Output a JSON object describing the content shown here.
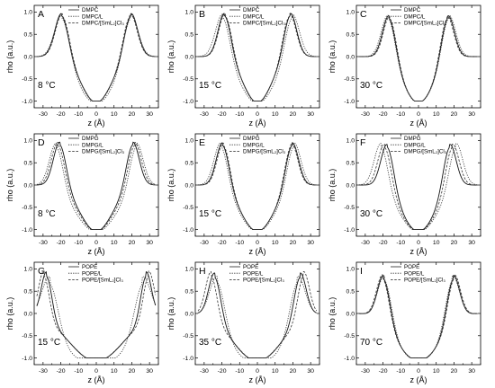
{
  "chart_data": [
    {
      "type": "line",
      "panel": "A",
      "temperature": "8 °C",
      "xlabel": "z (Å)",
      "ylabel": "rho (a.u.)",
      "xlim": [
        -35,
        35
      ],
      "ylim": [
        -1.15,
        1.15
      ],
      "xticks": [
        -30,
        -20,
        -10,
        0,
        10,
        20,
        30
      ],
      "yticks": [
        -1.0,
        -0.5,
        0.0,
        0.5,
        1.0
      ],
      "legend": {
        "position": "top-right"
      },
      "series": [
        {
          "name": "DMPC",
          "style": "solid",
          "peak_z": 19.5,
          "peak_width": 3.8,
          "trough_width": 7.5,
          "inner": 0.1
        },
        {
          "name": "DMPC/L",
          "style": "dotted",
          "peak_z": 19.2,
          "peak_width": 4.2,
          "trough_width": 8.5,
          "inner": 0.15
        },
        {
          "name": "DMPC/[SmL₂]Cl₃",
          "style": "dashed",
          "peak_z": 19.0,
          "peak_width": 3.9,
          "trough_width": 7.5,
          "inner": 0.12
        }
      ]
    },
    {
      "type": "line",
      "panel": "B",
      "temperature": "15 °C",
      "xlabel": "z (Å)",
      "ylabel": "rho (a.u.)",
      "xlim": [
        -35,
        35
      ],
      "ylim": [
        -1.15,
        1.15
      ],
      "xticks": [
        -30,
        -20,
        -10,
        0,
        10,
        20,
        30
      ],
      "yticks": [
        -1.0,
        -0.5,
        0.0,
        0.5,
        1.0
      ],
      "legend": {
        "position": "top-right"
      },
      "series": [
        {
          "name": "DMPC",
          "style": "solid",
          "peak_z": 18.5,
          "peak_width": 3.6,
          "trough_width": 7.0,
          "inner": 0.1
        },
        {
          "name": "DMPC/L",
          "style": "dotted",
          "peak_z": 19.5,
          "peak_width": 4.0,
          "trough_width": 8.0,
          "inner": 0.15
        },
        {
          "name": "DMPC/[SmL₂]Cl₃",
          "style": "dashed",
          "peak_z": 18.0,
          "peak_width": 3.7,
          "trough_width": 7.0,
          "inner": 0.12
        }
      ]
    },
    {
      "type": "line",
      "panel": "C",
      "temperature": "30 °C",
      "xlabel": "z (Å)",
      "ylabel": "rho (a.u.)",
      "xlim": [
        -35,
        35
      ],
      "ylim": [
        -1.15,
        1.15
      ],
      "xticks": [
        -30,
        -20,
        -10,
        0,
        10,
        20,
        30
      ],
      "yticks": [
        -1.0,
        -0.5,
        0.0,
        0.5,
        1.0
      ],
      "legend": {
        "position": "top-right"
      },
      "series": [
        {
          "name": "DMPC",
          "style": "solid",
          "peak_z": 16.5,
          "peak_width": 3.6,
          "trough_width": 7.5,
          "inner": 0.1
        },
        {
          "name": "DMPC/L",
          "style": "dotted",
          "peak_z": 17.0,
          "peak_width": 3.8,
          "trough_width": 7.5,
          "inner": 0.12
        },
        {
          "name": "DMPC/[SmL₂]Cl₃",
          "style": "dashed",
          "peak_z": 16.0,
          "peak_width": 3.6,
          "trough_width": 7.5,
          "inner": 0.1
        }
      ]
    },
    {
      "type": "line",
      "panel": "D",
      "temperature": "8 °C",
      "xlabel": "z (Å)",
      "ylabel": "rho (a.u.)",
      "xlim": [
        -35,
        35
      ],
      "ylim": [
        -1.15,
        1.15
      ],
      "xticks": [
        -30,
        -20,
        -10,
        0,
        10,
        20,
        30
      ],
      "yticks": [
        -1.0,
        -0.5,
        0.0,
        0.5,
        1.0
      ],
      "legend": {
        "position": "top-right"
      },
      "series": [
        {
          "name": "DMPG",
          "style": "solid",
          "peak_z": 20.5,
          "peak_width": 3.6,
          "trough_width": 8.0,
          "inner": 0.12
        },
        {
          "name": "DMPG/L",
          "style": "dotted",
          "peak_z": 22.5,
          "peak_width": 3.8,
          "trough_width": 9.5,
          "inner": 0.16
        },
        {
          "name": "DMPG/[SmL₂]Cl₃",
          "style": "dashed",
          "peak_z": 21.5,
          "peak_width": 3.7,
          "trough_width": 8.5,
          "inner": 0.14
        }
      ]
    },
    {
      "type": "line",
      "panel": "E",
      "temperature": "15 °C",
      "xlabel": "z (Å)",
      "ylabel": "rho (a.u.)",
      "xlim": [
        -35,
        35
      ],
      "ylim": [
        -1.15,
        1.15
      ],
      "xticks": [
        -30,
        -20,
        -10,
        0,
        10,
        20,
        30
      ],
      "yticks": [
        -1.0,
        -0.5,
        0.0,
        0.5,
        1.0
      ],
      "legend": {
        "position": "top-right"
      },
      "series": [
        {
          "name": "DMPG",
          "style": "solid",
          "peak_z": 19.5,
          "peak_width": 3.6,
          "trough_width": 8.0,
          "inner": 0.12
        },
        {
          "name": "DMPG/L",
          "style": "dotted",
          "peak_z": 20.5,
          "peak_width": 3.8,
          "trough_width": 8.5,
          "inner": 0.15
        },
        {
          "name": "DMPG/[SmL₂]Cl₃",
          "style": "dashed",
          "peak_z": 19.0,
          "peak_width": 3.6,
          "trough_width": 8.0,
          "inner": 0.12
        }
      ]
    },
    {
      "type": "line",
      "panel": "F",
      "temperature": "30 °C",
      "xlabel": "z (Å)",
      "ylabel": "rho (a.u.)",
      "xlim": [
        -35,
        35
      ],
      "ylim": [
        -1.15,
        1.15
      ],
      "xticks": [
        -30,
        -20,
        -10,
        0,
        10,
        20,
        30
      ],
      "yticks": [
        -1.0,
        -0.5,
        0.0,
        0.5,
        1.0
      ],
      "legend": {
        "position": "top-right"
      },
      "series": [
        {
          "name": "DMPG",
          "style": "solid",
          "peak_z": 17.5,
          "peak_width": 3.6,
          "trough_width": 8.0,
          "inner": 0.12
        },
        {
          "name": "DMPG/L",
          "style": "dotted",
          "peak_z": 21.0,
          "peak_width": 3.8,
          "trough_width": 9.0,
          "inner": 0.16
        },
        {
          "name": "DMPG/[SmL₂]Cl₃",
          "style": "dashed",
          "peak_z": 19.0,
          "peak_width": 3.7,
          "trough_width": 8.5,
          "inner": 0.14
        }
      ]
    },
    {
      "type": "line",
      "panel": "G",
      "temperature": "15 °C",
      "xlabel": "z (Å)",
      "ylabel": "rho (a.u.)",
      "xlim": [
        -35,
        35
      ],
      "ylim": [
        -1.15,
        1.15
      ],
      "xticks": [
        -30,
        -20,
        -10,
        0,
        10,
        20,
        30
      ],
      "yticks": [
        -1.0,
        -0.5,
        0.0,
        0.5,
        1.0
      ],
      "legend": {
        "position": "top-right"
      },
      "series": [
        {
          "name": "POPE",
          "style": "solid",
          "peak_z": 28.0,
          "peak_width": 3.0,
          "trough_width": 12.0,
          "inner": 0.2
        },
        {
          "name": "POPE/L",
          "style": "dotted",
          "peak_z": 26.0,
          "peak_width": 4.5,
          "trough_width": 14.0,
          "inner": 0.3
        },
        {
          "name": "POPE/[SmL₂]Cl₃",
          "style": "dashed",
          "peak_z": 29.5,
          "peak_width": 3.0,
          "trough_width": 12.0,
          "inner": 0.2
        }
      ]
    },
    {
      "type": "line",
      "panel": "H",
      "temperature": "35 °C",
      "xlabel": "z (Å)",
      "ylabel": "rho (a.u.)",
      "xlim": [
        -35,
        35
      ],
      "ylim": [
        -1.15,
        1.15
      ],
      "xticks": [
        -30,
        -20,
        -10,
        0,
        10,
        20,
        30
      ],
      "yticks": [
        -1.0,
        -0.5,
        0.0,
        0.5,
        1.0
      ],
      "legend": {
        "position": "top-right"
      },
      "series": [
        {
          "name": "POPE",
          "style": "solid",
          "peak_z": 24.0,
          "peak_width": 3.4,
          "trough_width": 11.0,
          "inner": 0.18
        },
        {
          "name": "POPE/L",
          "style": "dotted",
          "peak_z": 22.5,
          "peak_width": 4.2,
          "trough_width": 12.0,
          "inner": 0.25
        },
        {
          "name": "POPE/[SmL₂]Cl₃",
          "style": "dashed",
          "peak_z": 26.0,
          "peak_width": 3.2,
          "trough_width": 11.0,
          "inner": 0.18
        }
      ]
    },
    {
      "type": "line",
      "panel": "I",
      "temperature": "70 °C",
      "xlabel": "z (Å)",
      "ylabel": "rho (a.u.)",
      "xlim": [
        -35,
        35
      ],
      "ylim": [
        -1.15,
        1.15
      ],
      "xticks": [
        -30,
        -20,
        -10,
        0,
        10,
        20,
        30
      ],
      "yticks": [
        -1.0,
        -0.5,
        0.0,
        0.5,
        1.0
      ],
      "legend": {
        "position": "top-right"
      },
      "series": [
        {
          "name": "POPE",
          "style": "solid",
          "peak_z": 19.5,
          "peak_width": 3.5,
          "trough_width": 10.0,
          "inner": 0.16
        },
        {
          "name": "POPE/L",
          "style": "dotted",
          "peak_z": 19.0,
          "peak_width": 3.8,
          "trough_width": 10.0,
          "inner": 0.18
        },
        {
          "name": "POPE/[SmL₂]Cl₃",
          "style": "dashed",
          "peak_z": 20.0,
          "peak_width": 3.5,
          "trough_width": 10.0,
          "inner": 0.16
        }
      ]
    }
  ]
}
